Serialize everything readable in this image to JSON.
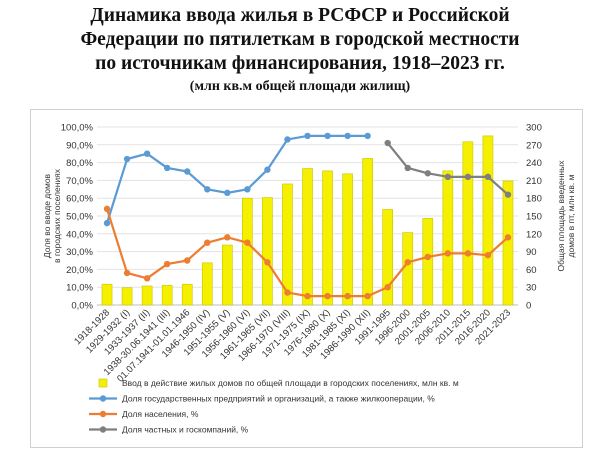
{
  "header": {
    "title_lines": [
      "Динамика ввода жилья в РСФСР и Российской",
      "Федерации по пятилеткам в городской местности",
      "по источникам финансирования, 1918–2023 гг."
    ],
    "subtitle": "(млн кв.м общей площади жилищ)"
  },
  "chart_data": {
    "type": "bar",
    "categories": [
      "1918-1928",
      "1929-1932 (I)",
      "1933-1937 (II)",
      "1938-30.06.1941 (III)",
      "01.07.1941-01.01.1946",
      "1946-1950 (IV)",
      "1951-1955 (V)",
      "1956-1960 (VI)",
      "1961-1965 (VII)",
      "1966-1970 (VIII)",
      "1971-1975 (IX)",
      "1976-1980 (X)",
      "1981-1985 (XI)",
      "1986-1990 (XII)",
      "1991-1995",
      "1996-2000",
      "2001-2005",
      "2006-2010",
      "2011-2015",
      "2016-2020",
      "2021-2023"
    ],
    "ylabel": "Доля во вводе домов в городских поселениях",
    "y2label": "Общая площадь введенных домов в пт, млн кв. м",
    "ylim": [
      0,
      100
    ],
    "y2lim": [
      0,
      300
    ],
    "yticks": [
      "0,0%",
      "10,0%",
      "20,0%",
      "30,0%",
      "40,0%",
      "50,0%",
      "60,0%",
      "70,0%",
      "80,0%",
      "90,0%",
      "100,0%"
    ],
    "y2ticks": [
      "0",
      "30",
      "60",
      "90",
      "120",
      "150",
      "180",
      "210",
      "240",
      "270",
      "300"
    ],
    "legend_position": "bottom",
    "grid": true,
    "series": [
      {
        "name": "Ввод в действие жилых домов по общей площади в городских поселениях, млн кв. м",
        "kind": "bar",
        "axis": "right",
        "color": "#f5f000",
        "values": [
          35,
          29,
          32,
          33,
          35,
          71,
          101,
          180,
          181,
          204,
          230,
          226,
          221,
          247,
          161,
          122,
          146,
          226,
          275,
          285,
          209
        ]
      },
      {
        "name": "Доля государственных предприятий и организаций, а также жилкооперации, %",
        "kind": "line",
        "axis": "left",
        "color": "#5b9bd5",
        "values": [
          46,
          82,
          85,
          77,
          75,
          65,
          63,
          65,
          76,
          93,
          95,
          95,
          95,
          95,
          null,
          null,
          null,
          null,
          null,
          null,
          null
        ]
      },
      {
        "name": "Доля населения, %",
        "kind": "line",
        "axis": "left",
        "color": "#ed7d31",
        "values": [
          54,
          18,
          15,
          23,
          25,
          35,
          38,
          35,
          24,
          7,
          5,
          5,
          5,
          5,
          10,
          24,
          27,
          29,
          29,
          28,
          38
        ]
      },
      {
        "name": "Доля частных и госкомпаний, %",
        "kind": "line",
        "axis": "left",
        "color": "#7f7f7f",
        "values": [
          null,
          null,
          null,
          null,
          null,
          null,
          null,
          null,
          null,
          null,
          null,
          null,
          null,
          null,
          91,
          77,
          74,
          72,
          72,
          72,
          62
        ]
      }
    ]
  }
}
